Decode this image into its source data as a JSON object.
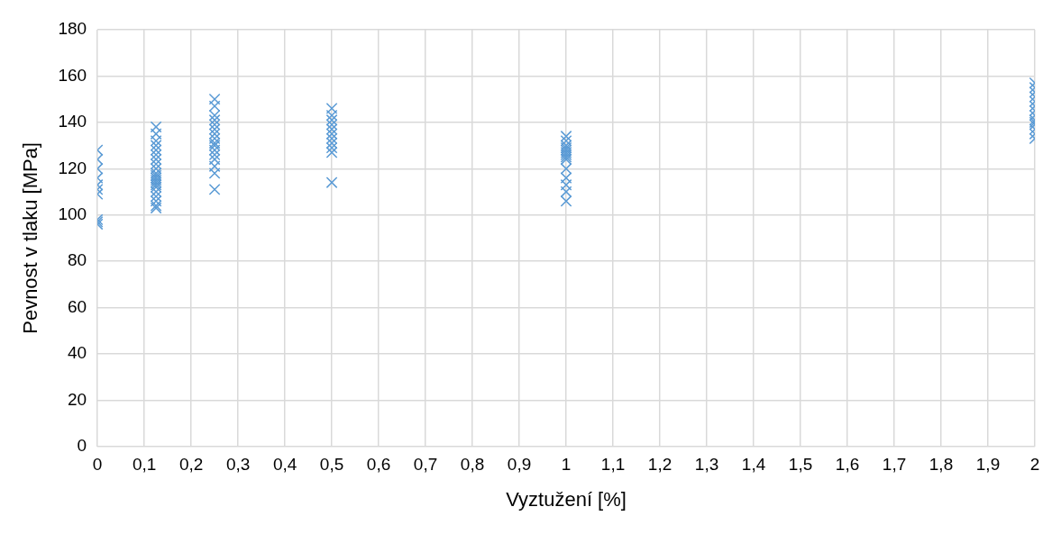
{
  "chart_data": {
    "type": "scatter",
    "xlabel": "Vyztužení [%]",
    "ylabel": "Pevnost v tlaku [MPa]",
    "marker": "cross",
    "grid": true,
    "legend": false,
    "xlim": [
      0,
      2
    ],
    "ylim": [
      0,
      180
    ],
    "xticks": [
      0,
      {
        "value": 0.1,
        "label": "0,1"
      },
      {
        "value": 0.2,
        "label": "0,2"
      },
      {
        "value": 0.3,
        "label": "0,3"
      },
      {
        "value": 0.4,
        "label": "0,4"
      },
      {
        "value": 0.5,
        "label": "0,5"
      },
      {
        "value": 0.6,
        "label": "0,6"
      },
      {
        "value": 0.7,
        "label": "0,7"
      },
      {
        "value": 0.8,
        "label": "0,8"
      },
      {
        "value": 0.9,
        "label": "0,9"
      },
      1,
      {
        "value": 1.1,
        "label": "1,1"
      },
      {
        "value": 1.2,
        "label": "1,2"
      },
      {
        "value": 1.3,
        "label": "1,3"
      },
      {
        "value": 1.4,
        "label": "1,4"
      },
      {
        "value": 1.5,
        "label": "1,5"
      },
      {
        "value": 1.6,
        "label": "1,6"
      },
      {
        "value": 1.7,
        "label": "1,7"
      },
      {
        "value": 1.8,
        "label": "1,8"
      },
      {
        "value": 1.9,
        "label": "1,9"
      },
      2
    ],
    "yticks": [
      0,
      20,
      40,
      60,
      80,
      100,
      120,
      140,
      160,
      180
    ],
    "series": [
      {
        "color": "#5b9bd5",
        "x": [
          0,
          0,
          0,
          0,
          0,
          0,
          0,
          0,
          0,
          0,
          0.125,
          0.125,
          0.125,
          0.125,
          0.125,
          0.125,
          0.125,
          0.125,
          0.125,
          0.125,
          0.125,
          0.125,
          0.125,
          0.125,
          0.125,
          0.125,
          0.125,
          0.125,
          0.125,
          0.125,
          0.125,
          0.25,
          0.25,
          0.25,
          0.25,
          0.25,
          0.25,
          0.25,
          0.25,
          0.25,
          0.25,
          0.25,
          0.25,
          0.25,
          0.25,
          0.25,
          0.25,
          0.5,
          0.5,
          0.5,
          0.5,
          0.5,
          0.5,
          0.5,
          0.5,
          0.5,
          0.5,
          0.5,
          1,
          1,
          1,
          1,
          1,
          1,
          1,
          1,
          1,
          1,
          1,
          1,
          1,
          1,
          2,
          2,
          2,
          2,
          2,
          2,
          2,
          2,
          2,
          2,
          2,
          2,
          2,
          2
        ],
        "values": [
          128,
          124,
          120,
          116,
          113,
          111,
          109,
          98,
          97,
          96,
          138,
          135,
          132,
          130,
          128,
          126,
          124,
          122,
          120,
          118,
          117,
          116,
          115,
          114,
          113,
          112,
          110,
          108,
          106,
          104,
          103,
          150,
          147,
          143,
          141,
          139,
          137,
          135,
          133,
          131,
          130,
          128,
          126,
          124,
          121,
          118,
          111,
          146,
          143,
          141,
          139,
          137,
          135,
          133,
          131,
          129,
          127,
          114,
          134,
          132,
          130,
          129,
          128,
          127,
          126,
          125,
          124,
          120,
          116,
          113,
          110,
          106,
          157,
          155,
          153,
          151,
          149,
          147,
          145,
          143,
          141,
          140,
          139,
          137,
          135,
          133
        ]
      }
    ]
  }
}
